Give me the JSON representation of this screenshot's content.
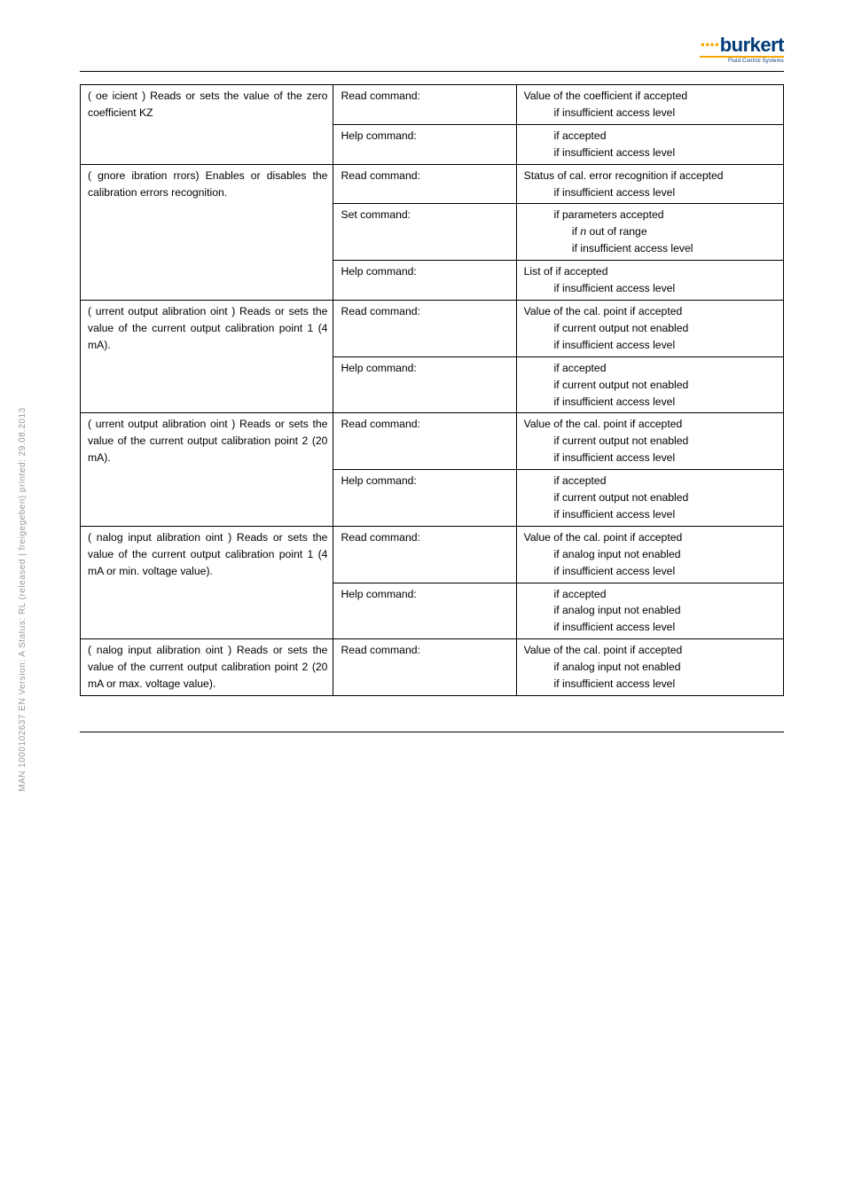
{
  "sideText": "MAN 1000102637 EN Version: A Status: RL (released | freigegeben) printed: 29.08.2013",
  "logo": {
    "dots": "····",
    "name": "burkert",
    "sub": "Fluid Control Systems"
  },
  "rows": [
    {
      "desc": "( oe icient ) Reads or sets the value of the zero coefficient KZ",
      "cells": [
        {
          "cmd": "Read command:",
          "resp": "Value of the coefficient if accepted\n     if insufficient access level"
        },
        {
          "cmd": "Help command:",
          "resp": "     if accepted\n     if insufficient access level"
        }
      ]
    },
    {
      "desc": "( gnore ibration rrors) Enables or disables the calibration errors recognition.",
      "cells": [
        {
          "cmd": "Read command:",
          "resp": "Status of cal. error recognition if accepted\n     if insufficient access level"
        },
        {
          "cmd": "Set command:",
          "resp": "     if parameters accepted\n        if n out of range\n        if insufficient access level"
        },
        {
          "cmd": "Help command:",
          "resp": "List of          if accepted\n     if insufficient access level"
        }
      ]
    },
    {
      "desc": "( urrent output alibration oint ) Reads or sets the value of the current output calibration point 1 (4 mA).",
      "cells": [
        {
          "cmd": "Read command:",
          "resp": "Value of the cal. point if accepted\n     if current output not enabled\n     if insufficient access level"
        },
        {
          "cmd": "Help command:",
          "resp": "     if accepted\n     if current output not enabled\n     if insufficient access level"
        }
      ]
    },
    {
      "desc": "( urrent output alibration oint ) Reads or sets the value of the current output calibration point 2 (20 mA).",
      "cells": [
        {
          "cmd": "Read command:",
          "resp": "Value of the cal. point if accepted\n     if current output not enabled\n     if insufficient access level"
        },
        {
          "cmd": "Help command:",
          "resp": "     if accepted\n     if current output not enabled\n     if insufficient access level"
        }
      ]
    },
    {
      "desc": "( nalog input alibration oint ) Reads or sets the value of the current output calibration point 1 (4 mA or min. voltage value).",
      "cells": [
        {
          "cmd": "Read command:",
          "resp": "Value of the cal. point if accepted\n     if analog input not enabled\n     if insufficient access level"
        },
        {
          "cmd": "Help command:",
          "resp": "     if accepted\n     if analog input not enabled\n     if insufficient access level"
        }
      ]
    },
    {
      "desc": "( nalog input alibration oint ) Reads or sets the value of the current output calibration point 2 (20 mA or max. voltage value).",
      "cells": [
        {
          "cmd": "Read command:",
          "resp": "Value of the cal. point if accepted\n     if analog input not enabled\n     if insufficient access level"
        }
      ]
    }
  ]
}
